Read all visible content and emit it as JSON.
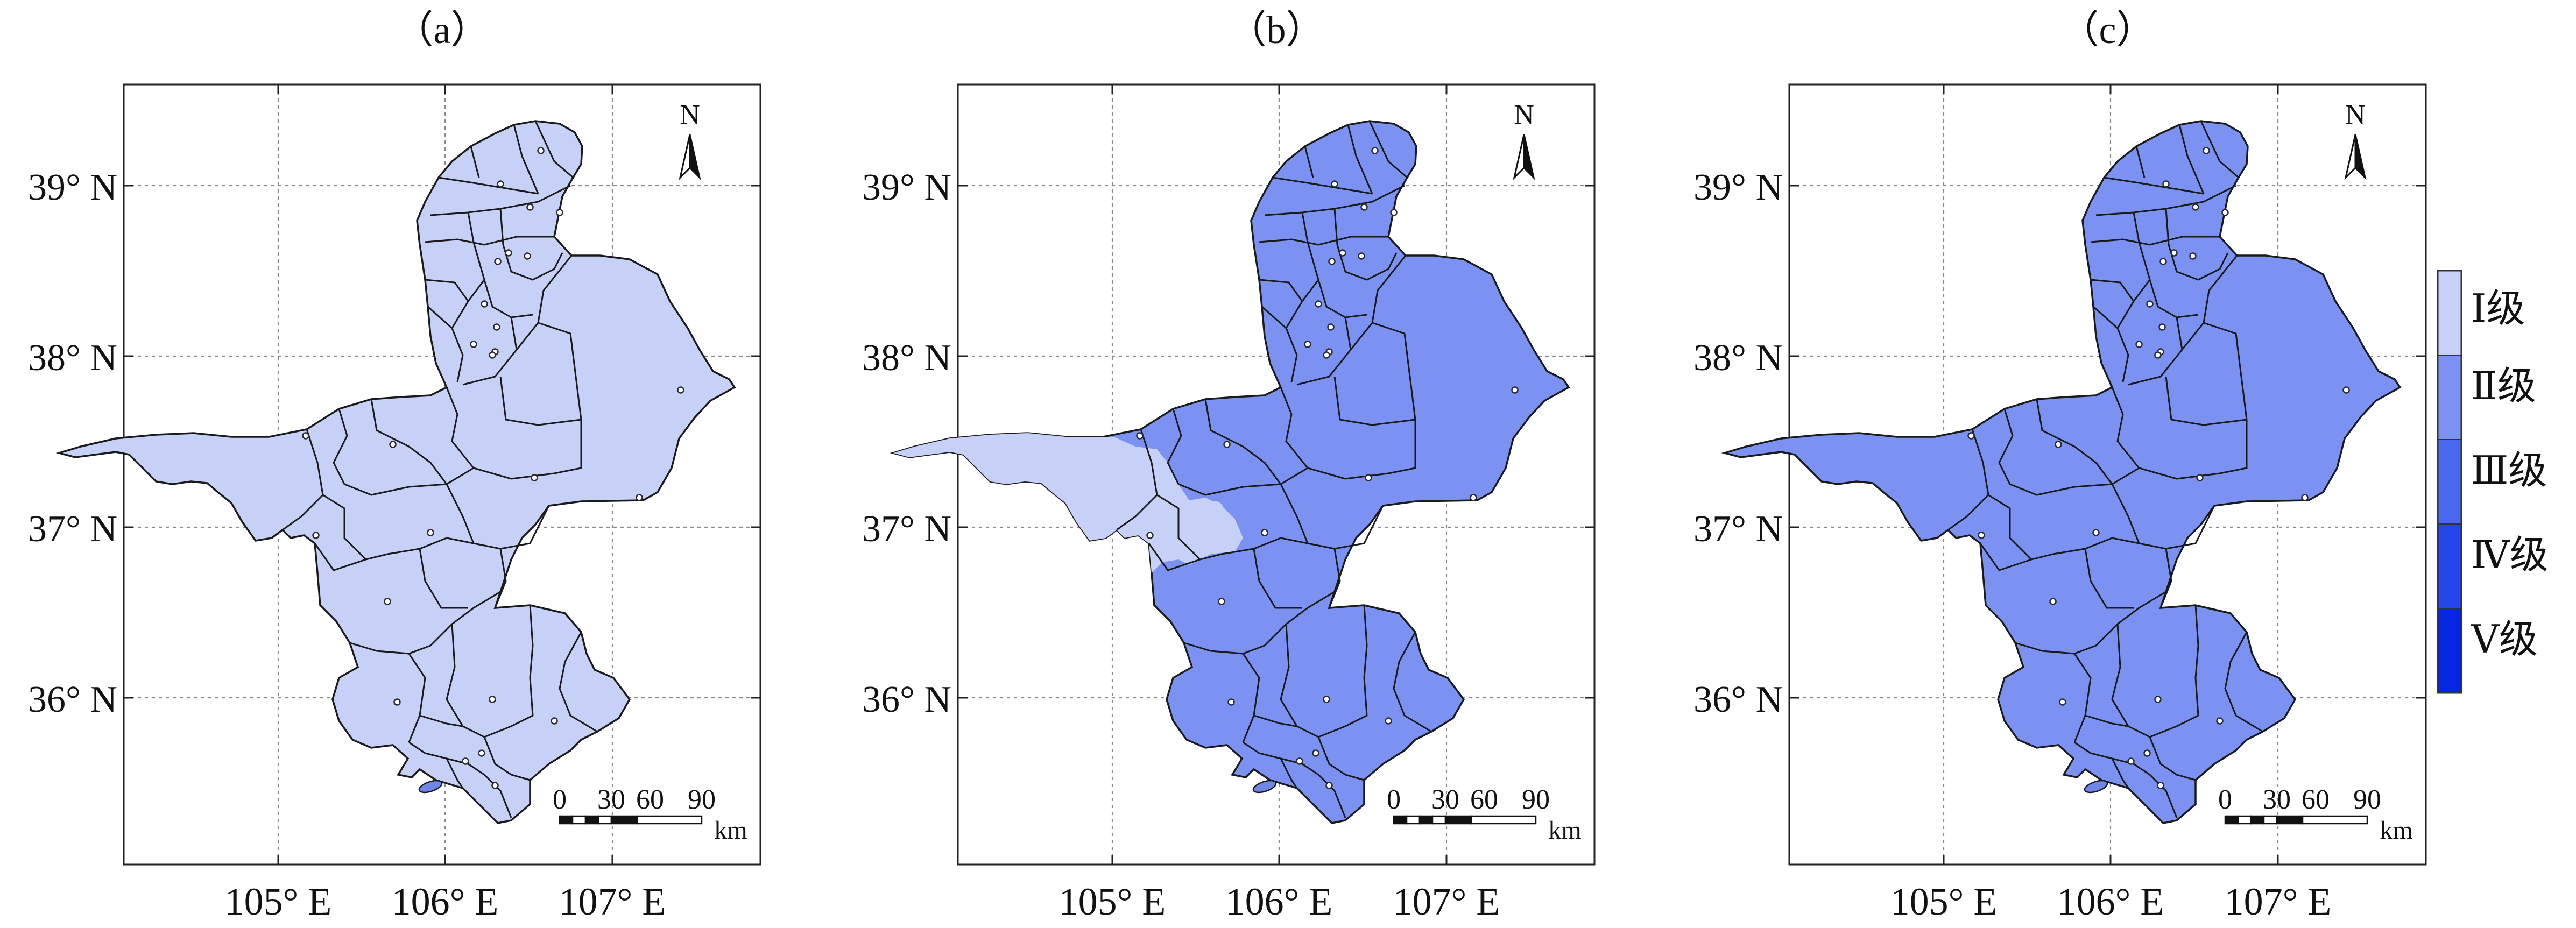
{
  "panels": [
    {
      "label": "（a）",
      "fill_class": 1,
      "sub_region_class": null
    },
    {
      "label": "（b）",
      "fill_class": 2,
      "sub_region_class": 1
    },
    {
      "label": "（c）",
      "fill_class": 2,
      "sub_region_class": null
    }
  ],
  "axes": {
    "lat_ticks": [
      "39° N",
      "38° N",
      "37° N",
      "36° N"
    ],
    "lon_ticks": [
      "105° E",
      "106° E",
      "107° E"
    ]
  },
  "north_arrow": {
    "label": "N"
  },
  "scale_bar": {
    "ticks": [
      "0",
      "30",
      "60",
      "90"
    ],
    "unit": "km"
  },
  "legend": {
    "items": [
      {
        "label": "Ⅰ级",
        "color": "#c7d0f7"
      },
      {
        "label": "Ⅱ级",
        "color": "#7b92f2"
      },
      {
        "label": "Ⅲ级",
        "color": "#4a68ee"
      },
      {
        "label": "Ⅳ级",
        "color": "#2545ec"
      },
      {
        "label": "Ⅴ级",
        "color": "#0526e3"
      }
    ]
  }
}
